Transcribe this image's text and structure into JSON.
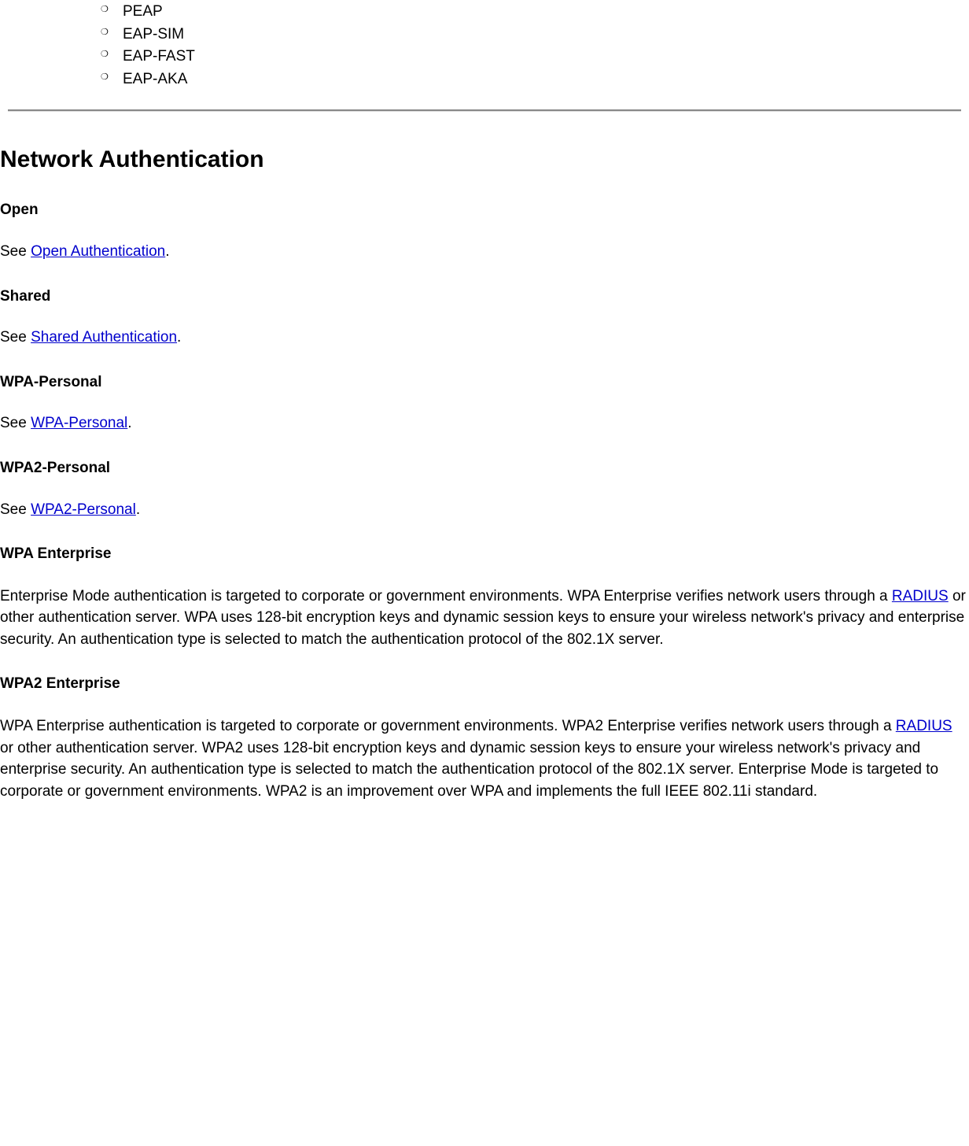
{
  "sublist": {
    "items": [
      "PEAP",
      "EAP-SIM",
      "EAP-FAST",
      "EAP-AKA"
    ]
  },
  "section": {
    "title": "Network Authentication"
  },
  "open": {
    "heading": "Open",
    "prefix": "See ",
    "link": "Open Authentication",
    "suffix": "."
  },
  "shared": {
    "heading": "Shared",
    "prefix": "See ",
    "link": "Shared Authentication",
    "suffix": "."
  },
  "wpa_personal": {
    "heading": "WPA-Personal",
    "prefix": "See ",
    "link": "WPA-Personal",
    "suffix": "."
  },
  "wpa2_personal": {
    "heading": "WPA2-Personal",
    "prefix": "See ",
    "link": "WPA2-Personal",
    "suffix": "."
  },
  "wpa_enterprise": {
    "heading": "WPA Enterprise",
    "text_before": "Enterprise Mode authentication is targeted to corporate or government environments. WPA Enterprise verifies network users through a ",
    "link": "RADIUS",
    "text_after": " or other authentication server. WPA uses 128-bit encryption keys and dynamic session keys to ensure your wireless network's privacy and enterprise security. An authentication type is selected to match the authentication protocol of the 802.1X server."
  },
  "wpa2_enterprise": {
    "heading": "WPA2 Enterprise",
    "text_before": "WPA Enterprise authentication is targeted to corporate or government environments. WPA2 Enterprise verifies network users through a ",
    "link": "RADIUS",
    "text_after": " or other authentication server. WPA2 uses 128-bit encryption keys and dynamic session keys to ensure your wireless network's privacy and enterprise security. An authentication type is selected to match the authentication protocol of the 802.1X server. Enterprise Mode is targeted to corporate or government environments. WPA2 is an improvement over WPA and implements the full IEEE 802.11i standard."
  }
}
